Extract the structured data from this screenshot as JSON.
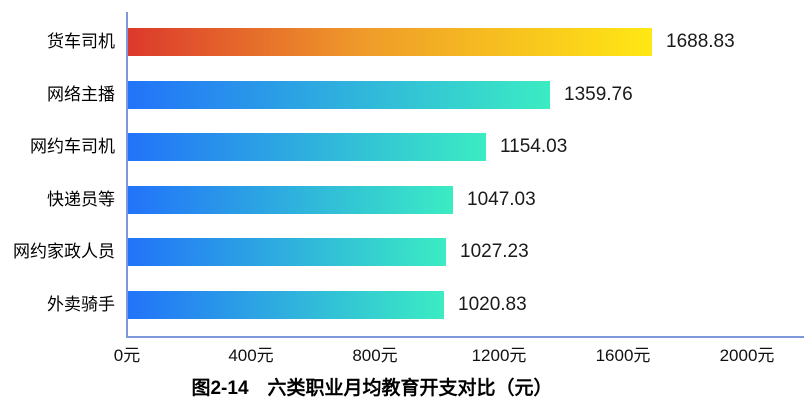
{
  "chart_data": {
    "type": "bar",
    "orientation": "horizontal",
    "title": "图2-14　六类职业月均教育开支对比（元）",
    "categories": [
      "货车司机",
      "网络主播",
      "网约车司机",
      "快递员等",
      "网约家政人员",
      "外卖骑手"
    ],
    "values": [
      1688.83,
      1359.76,
      1154.03,
      1047.03,
      1027.23,
      1020.83
    ],
    "value_labels": [
      "1688.83",
      "1359.76",
      "1154.03",
      "1047.03",
      "1027.23",
      "1020.83"
    ],
    "x_ticks": [
      "0元",
      "400元",
      "800元",
      "1200元",
      "1600元",
      "2000元"
    ],
    "xlim": [
      0,
      2000
    ],
    "grid": false,
    "legend": null,
    "colors": {
      "bar_first_gradient": [
        "#dc392c",
        "#ef9b2a",
        "#ffe714"
      ],
      "bar_rest_gradient": [
        "#2273f9",
        "#3becc3"
      ],
      "axis": "#7d98db",
      "value_text": "#1a1a1a",
      "category_text": "#000000",
      "tick_text": "#111111"
    }
  }
}
